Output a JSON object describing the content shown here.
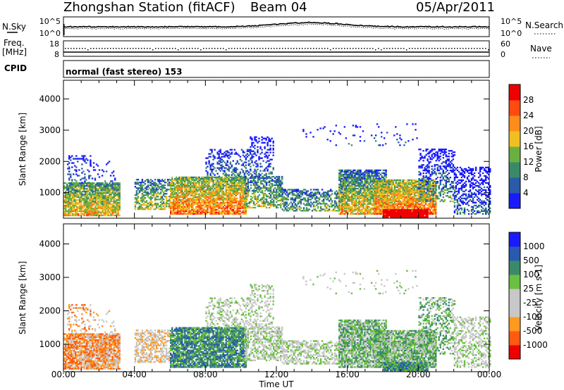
{
  "header": {
    "station": "Zhongshan Station (fitACF)",
    "beam": "Beam 04",
    "date": "05/Apr/2011"
  },
  "panel_labels": {
    "nsky": "N.Sky",
    "nsearch": "N.Search",
    "freq": "Freq.",
    "freq_unit": "[MHz]",
    "nave": "Nave",
    "cpid": "CPID",
    "cpid_value": "normal (fast stereo) 153",
    "nsky_ticks": [
      "10^5",
      "10^0"
    ],
    "nsearch_ticks": [
      "10^5",
      "10^0"
    ],
    "freq_ticks": [
      "18",
      "8"
    ],
    "nave_ticks": [
      "60",
      "0"
    ]
  },
  "colors": {
    "power_scale": [
      "#1a1aff",
      "#2a5aa8",
      "#3a8a6a",
      "#6ab040",
      "#f0c020",
      "#ff8c1a",
      "#ff4a10",
      "#ee0000"
    ],
    "velocity_scale": [
      "#ee0000",
      "#ff5a10",
      "#ff9a20",
      "#c8c8c8",
      "#c8c8c8",
      "#6ac040",
      "#3a8a6a",
      "#2a5ab0",
      "#1a1aff"
    ]
  },
  "chart_data": [
    {
      "type": "heatmap",
      "title": "Power",
      "colorbar_label": "Power [dB]",
      "colorbar_ticks": [
        "28",
        "24",
        "20",
        "16",
        "12",
        "8",
        "4"
      ],
      "ylabel": "Slant Range [km]",
      "yticks": [
        "4000",
        "3000",
        "2000",
        "1000"
      ],
      "ylim": [
        180,
        4600
      ],
      "xlabel": "Time UT",
      "xticks": [
        "00:00",
        "04:00",
        "08:00",
        "12:00",
        "16:00",
        "20:00",
        "00:00"
      ],
      "xlim": [
        0,
        24
      ]
    },
    {
      "type": "heatmap",
      "title": "Velocity",
      "colorbar_label": "Velocity [m s-1]",
      "colorbar_ticks": [
        "1000",
        "500",
        "100",
        "25",
        "-25",
        "-100",
        "-500",
        "-1000"
      ],
      "ylabel": "Slant Range [km]",
      "yticks": [
        "4000",
        "3000",
        "2000",
        "1000"
      ],
      "ylim": [
        180,
        4600
      ],
      "xlabel": "Time UT",
      "xticks": [
        "00:00",
        "04:00",
        "08:00",
        "12:00",
        "16:00",
        "20:00",
        "00:00"
      ],
      "xlim": [
        0,
        24
      ]
    }
  ]
}
